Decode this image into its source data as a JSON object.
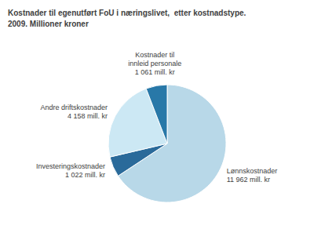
{
  "chart_data": {
    "type": "pie",
    "title": "Kostnader til egenutført FoU i næringslivet,  etter kostnadstype.\n2009. Millioner kroner",
    "categories": [
      "Lønnskostnader",
      "Investeringskostnader",
      "Andre driftskostnader",
      "Kostnader til\ninnleid personale"
    ],
    "values": [
      11962,
      1022,
      4158,
      1061
    ],
    "value_labels": [
      "11 962 mill. kr",
      "1 022 mill. kr",
      "4 158 mill. kr",
      "1 061 mill. kr"
    ],
    "data_labels": true,
    "colors": [
      "#b8d8e8",
      "#2a6a9a",
      "#cce8f4",
      "#2878a8"
    ]
  }
}
